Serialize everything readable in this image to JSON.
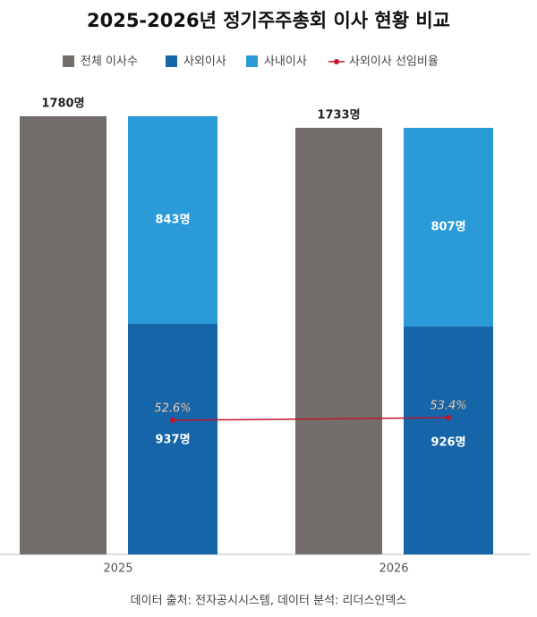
{
  "chart_data": {
    "type": "bar",
    "title": "2025-2026년 정기주주총회 이사 현황 비교",
    "categories": [
      "2025",
      "2026"
    ],
    "series": [
      {
        "name": "전체 이사수",
        "color": "#736e6c",
        "values": [
          1780,
          1733
        ],
        "value_labels": [
          "1780명",
          "1733명"
        ]
      },
      {
        "name": "사외이사",
        "color": "#1565a8",
        "values": [
          937,
          926
        ],
        "value_labels": [
          "937명",
          "926명"
        ]
      },
      {
        "name": "사내이사",
        "color": "#2a9ad8",
        "values": [
          843,
          807
        ],
        "value_labels": [
          "843명",
          "807명"
        ]
      },
      {
        "name": "사외이사 선임비율",
        "color": "#c0142c",
        "type": "line",
        "axis": "y2",
        "values": [
          52.6,
          53.4
        ],
        "value_labels": [
          "52.6%",
          "53.4%"
        ]
      }
    ],
    "ylim": [
      0,
      1780
    ],
    "y2lim": [
      12.6,
      143.3
    ],
    "source": "데이터 출처: 전자공시시스템, 데이터 분석: 리더스인덱스"
  }
}
